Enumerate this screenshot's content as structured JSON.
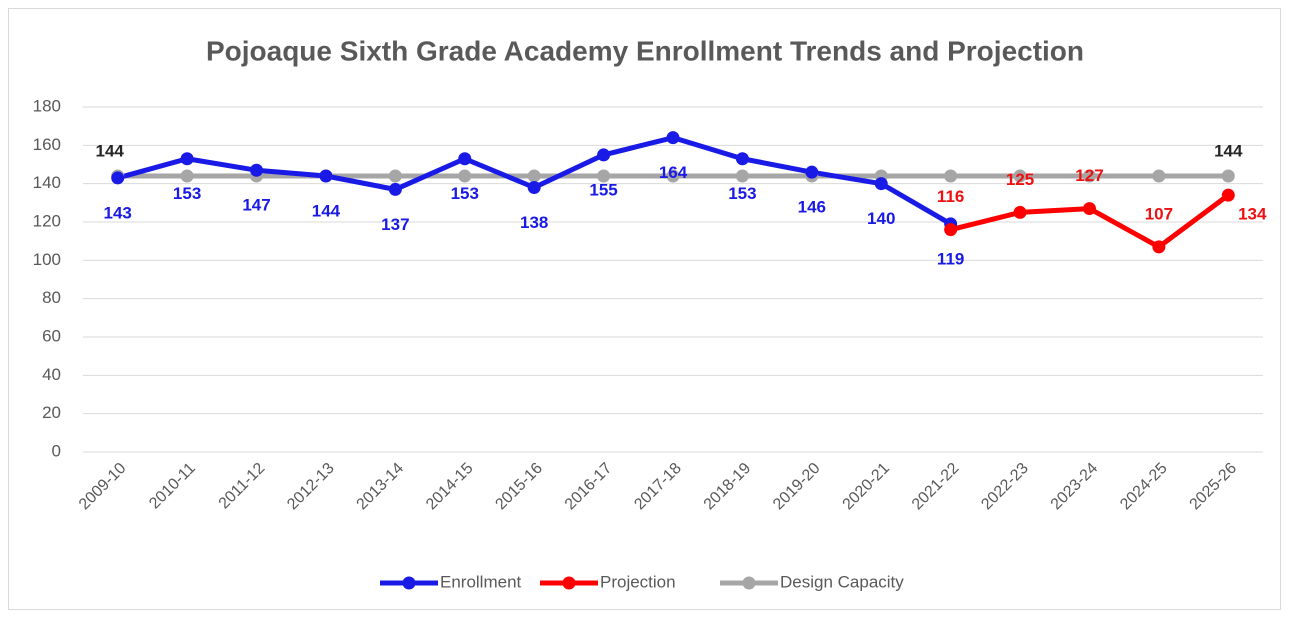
{
  "chart_data": {
    "type": "line",
    "title": "Pojoaque Sixth Grade Academy Enrollment Trends and Projection",
    "categories": [
      "2009-10",
      "2010-11",
      "2011-12",
      "2012-13",
      "2013-14",
      "2014-15",
      "2015-16",
      "2016-17",
      "2017-18",
      "2018-19",
      "2019-20",
      "2020-21",
      "2021-22",
      "2022-23",
      "2023-24",
      "2024-25",
      "2025-26"
    ],
    "series": [
      {
        "name": "Enrollment",
        "color": "#1a1ae6",
        "label_color": "#1a1ae6",
        "values": [
          143,
          153,
          147,
          144,
          137,
          153,
          138,
          155,
          164,
          153,
          146,
          140,
          119,
          null,
          null,
          null,
          null
        ]
      },
      {
        "name": "Projection",
        "color": "#ff0000",
        "label_color": "#ee1111",
        "values": [
          null,
          null,
          null,
          null,
          null,
          null,
          null,
          null,
          null,
          null,
          null,
          null,
          116,
          125,
          127,
          107,
          134
        ]
      },
      {
        "name": "Design Capacity",
        "color": "#a6a6a6",
        "label_color": "#262626",
        "values": [
          144,
          144,
          144,
          144,
          144,
          144,
          144,
          144,
          144,
          144,
          144,
          144,
          144,
          144,
          144,
          144,
          144
        ],
        "value_labels": [
          "144",
          null,
          null,
          null,
          null,
          null,
          null,
          null,
          null,
          null,
          null,
          null,
          null,
          null,
          null,
          null,
          "144"
        ]
      }
    ],
    "ylim": [
      0,
      180
    ],
    "yticks": [
      0,
      20,
      40,
      60,
      80,
      100,
      120,
      140,
      160,
      180
    ],
    "grid": true,
    "legend": "bottom"
  }
}
